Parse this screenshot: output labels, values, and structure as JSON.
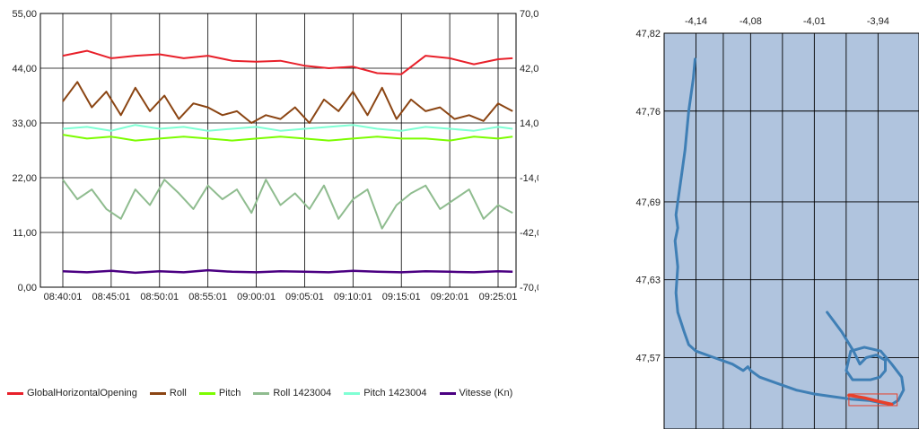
{
  "chart_data": [
    {
      "type": "line",
      "title": "",
      "xlabel": "",
      "ylabel": "",
      "x_categories": [
        "08:40:01",
        "08:45:01",
        "08:50:01",
        "08:55:01",
        "09:00:01",
        "09:05:01",
        "09:10:01",
        "09:15:01",
        "09:20:01",
        "09:25:01"
      ],
      "y_left": {
        "ylim": [
          0,
          55
        ],
        "ticks": [
          "0,00",
          "11,00",
          "22,00",
          "33,00",
          "44,00",
          "55,00"
        ]
      },
      "y_right": {
        "ylim": [
          -70,
          70
        ],
        "ticks": [
          "-70,00",
          "-42,00",
          "-14,00",
          "14,00",
          "42,00",
          "70,00"
        ]
      },
      "grid": true,
      "legend_placement": "bottom",
      "series": [
        {
          "name": "GlobalHorizontalOpening",
          "color": "#e8202a",
          "axis": "left",
          "x": [
            0,
            0.5,
            1,
            1.5,
            2,
            2.5,
            3,
            3.5,
            4,
            4.5,
            5,
            5.5,
            6,
            6.5,
            7,
            7.5,
            8,
            8.5,
            9,
            9.3
          ],
          "values": [
            46.5,
            47.5,
            46,
            46.5,
            46.8,
            46,
            46.5,
            45.5,
            45.3,
            45.5,
            44.5,
            44,
            44.3,
            43,
            42.8,
            46.5,
            46,
            44.8,
            45.8,
            46
          ]
        },
        {
          "name": "Roll",
          "color": "#8b4513",
          "axis": "right",
          "x": [
            0,
            0.3,
            0.6,
            0.9,
            1.2,
            1.5,
            1.8,
            2.1,
            2.4,
            2.7,
            3,
            3.3,
            3.6,
            3.9,
            4.2,
            4.5,
            4.8,
            5.1,
            5.4,
            5.7,
            6,
            6.3,
            6.6,
            6.9,
            7.2,
            7.5,
            7.8,
            8.1,
            8.4,
            8.7,
            9,
            9.3
          ],
          "values": [
            25,
            35,
            22,
            30,
            18,
            32,
            20,
            28,
            16,
            24,
            22,
            18,
            20,
            14,
            18,
            16,
            22,
            14,
            26,
            20,
            30,
            18,
            32,
            16,
            26,
            20,
            22,
            16,
            18,
            15,
            24,
            20
          ]
        },
        {
          "name": "Pitch",
          "color": "#7cfc00",
          "axis": "right",
          "x": [
            0,
            0.5,
            1,
            1.5,
            2,
            2.5,
            3,
            3.5,
            4,
            4.5,
            5,
            5.5,
            6,
            6.5,
            7,
            7.5,
            8,
            8.5,
            9,
            9.3
          ],
          "values": [
            8,
            6,
            7,
            5,
            6,
            7,
            6,
            5,
            6,
            7,
            6,
            5,
            6,
            7,
            6,
            6,
            5,
            7,
            6,
            7
          ]
        },
        {
          "name": "Roll 1423004",
          "color": "#8fbc8f",
          "axis": "right",
          "x": [
            0,
            0.3,
            0.6,
            0.9,
            1.2,
            1.5,
            1.8,
            2.1,
            2.4,
            2.7,
            3,
            3.3,
            3.6,
            3.9,
            4.2,
            4.5,
            4.8,
            5.1,
            5.4,
            5.7,
            6,
            6.3,
            6.6,
            6.9,
            7.2,
            7.5,
            7.8,
            8.1,
            8.4,
            8.7,
            9,
            9.3
          ],
          "values": [
            -15,
            -25,
            -20,
            -30,
            -35,
            -20,
            -28,
            -15,
            -22,
            -30,
            -18,
            -25,
            -20,
            -32,
            -15,
            -28,
            -22,
            -30,
            -18,
            -35,
            -25,
            -20,
            -40,
            -28,
            -22,
            -18,
            -30,
            -25,
            -20,
            -35,
            -28,
            -32
          ]
        },
        {
          "name": "Pitch 1423004",
          "color": "#7fffd4",
          "axis": "right",
          "x": [
            0,
            0.5,
            1,
            1.5,
            2,
            2.5,
            3,
            3.5,
            4,
            4.5,
            5,
            5.5,
            6,
            6.5,
            7,
            7.5,
            8,
            8.5,
            9,
            9.3
          ],
          "values": [
            11,
            12,
            10,
            13,
            11,
            12,
            10,
            11,
            12,
            10,
            11,
            12,
            13,
            11,
            10,
            12,
            11,
            10,
            12,
            11
          ]
        },
        {
          "name": "Vitesse (Kn)",
          "color": "#4b0082",
          "axis": "left",
          "x": [
            0,
            0.5,
            1,
            1.5,
            2,
            2.5,
            3,
            3.5,
            4,
            4.5,
            5,
            5.5,
            6,
            6.5,
            7,
            7.5,
            8,
            8.5,
            9,
            9.3
          ],
          "values": [
            3.2,
            3,
            3.3,
            2.9,
            3.2,
            3,
            3.4,
            3.1,
            3,
            3.2,
            3.1,
            3,
            3.3,
            3.1,
            3,
            3.2,
            3.1,
            3,
            3.2,
            3.1
          ]
        }
      ]
    },
    {
      "type": "line",
      "title": "",
      "xlabel": "",
      "ylabel": "",
      "x_ticks": [
        "-4,14",
        "-4,08",
        "-4,01",
        "-3,94"
      ],
      "y_ticks": [
        "47,82",
        "47,76",
        "47,69",
        "47,63",
        "47,57"
      ],
      "xlim": [
        -4.175,
        -3.895
      ],
      "ylim": [
        47.515,
        47.82
      ],
      "grid": true,
      "background": "#b0c4de",
      "series": [
        {
          "name": "",
          "color": "#3f7fb5",
          "x": [
            -4.141,
            -4.143,
            -4.148,
            -4.152,
            -4.156,
            -4.16,
            -4.162,
            -4.16,
            -4.163,
            -4.16,
            -4.162,
            -4.16,
            -4.153,
            -4.148,
            -4.14,
            -4.12,
            -4.1,
            -4.088,
            -4.083,
            -4.08,
            -4.07,
            -4.05,
            -4.03,
            -4.01,
            -3.99,
            -3.97,
            -3.95,
            -3.935,
            -3.925,
            -3.918,
            -3.912,
            -3.914,
            -3.925,
            -3.937,
            -3.955,
            -3.97,
            -3.975,
            -3.968,
            -3.948,
            -3.938,
            -3.932,
            -3.932,
            -3.942,
            -3.953,
            -3.96,
            -3.967,
            -3.98,
            -3.996
          ],
          "y": [
            47.8,
            47.785,
            47.76,
            47.73,
            47.71,
            47.69,
            47.68,
            47.67,
            47.66,
            47.64,
            47.62,
            47.605,
            47.59,
            47.58,
            47.575,
            47.57,
            47.565,
            47.56,
            47.563,
            47.56,
            47.555,
            47.55,
            47.545,
            47.542,
            47.54,
            47.538,
            47.537,
            47.535,
            47.534,
            47.537,
            47.545,
            47.555,
            47.565,
            47.575,
            47.578,
            47.575,
            47.56,
            47.553,
            47.553,
            47.555,
            47.56,
            47.568,
            47.572,
            47.57,
            47.565,
            47.575,
            47.59,
            47.605
          ]
        },
        {
          "name": "",
          "color": "#e8402a",
          "x": [
            -3.972,
            -3.955,
            -3.938,
            -3.925
          ],
          "y": [
            47.541,
            47.539,
            47.536,
            47.534
          ]
        }
      ],
      "annotations": [
        {
          "type": "rectangle",
          "color": "#e8402a",
          "x": [
            -3.972,
            -3.919
          ],
          "y": [
            47.533,
            47.542
          ]
        }
      ]
    }
  ]
}
